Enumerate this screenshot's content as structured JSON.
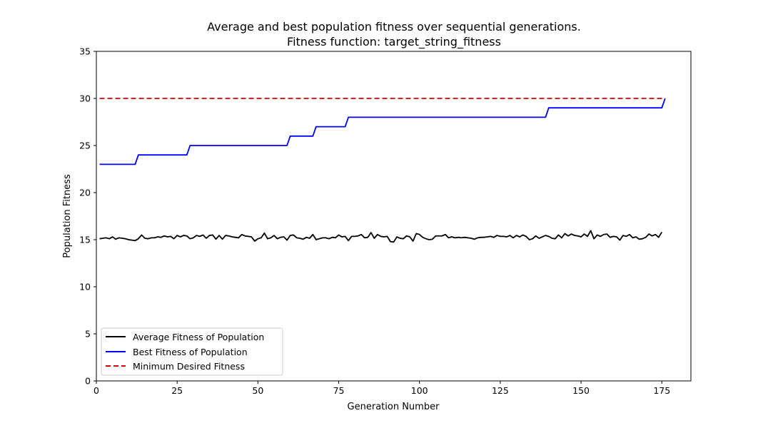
{
  "chart_data": {
    "type": "line",
    "title_line1": "Average and best population fitness over sequential generations.",
    "title_line2": "Fitness function: target_string_fitness",
    "xlabel": "Generation Number",
    "ylabel": "Population Fitness",
    "xlim": [
      0,
      184
    ],
    "ylim": [
      0,
      35
    ],
    "xticks": [
      0,
      25,
      50,
      75,
      100,
      125,
      150,
      175
    ],
    "yticks": [
      0,
      5,
      10,
      15,
      20,
      25,
      30,
      35
    ],
    "legend_position": "lower-left",
    "series": [
      {
        "name": "Average Fitness of Population",
        "color": "#000000",
        "style": "solid",
        "x_start": 1,
        "values": [
          15.1,
          15.15,
          15.2,
          15.1,
          15.3,
          15.05,
          15.2,
          15.15,
          15.1,
          15.0,
          14.95,
          14.9,
          15.1,
          15.5,
          15.15,
          15.1,
          15.2,
          15.2,
          15.3,
          15.25,
          15.4,
          15.3,
          15.35,
          15.1,
          15.45,
          15.3,
          15.45,
          15.4,
          15.1,
          15.2,
          15.45,
          15.35,
          15.5,
          15.15,
          15.45,
          15.5,
          15.05,
          15.45,
          15.05,
          15.45,
          15.4,
          15.3,
          15.25,
          15.2,
          15.55,
          15.4,
          15.35,
          15.3,
          14.85,
          15.1,
          15.2,
          15.7,
          15.1,
          15.2,
          15.45,
          15.1,
          15.25,
          15.3,
          14.95,
          15.45,
          15.5,
          15.2,
          15.15,
          15.05,
          15.25,
          15.15,
          15.55,
          15.0,
          15.1,
          15.2,
          15.2,
          15.1,
          15.25,
          15.2,
          15.5,
          15.3,
          15.35,
          14.9,
          15.35,
          15.35,
          15.4,
          15.55,
          15.2,
          15.25,
          15.75,
          15.15,
          15.55,
          15.35,
          15.3,
          15.35,
          14.8,
          14.75,
          15.3,
          15.15,
          15.1,
          15.4,
          15.3,
          14.85,
          15.65,
          15.55,
          15.25,
          15.1,
          15.0,
          15.05,
          15.4,
          15.4,
          15.4,
          15.55,
          15.2,
          15.3,
          15.2,
          15.25,
          15.2,
          15.25,
          15.2,
          15.15,
          15.05,
          15.2,
          15.25,
          15.25,
          15.3,
          15.35,
          15.25,
          15.45,
          15.35,
          15.35,
          15.3,
          15.45,
          15.2,
          15.45,
          15.3,
          15.5,
          15.35,
          15.0,
          15.1,
          15.4,
          15.15,
          15.3,
          15.45,
          15.35,
          15.15,
          15.1,
          15.5,
          15.2,
          15.65,
          15.4,
          15.6,
          15.45,
          15.4,
          15.3,
          15.6,
          15.35,
          15.95,
          15.1,
          15.5,
          15.35,
          15.55,
          15.6,
          15.25,
          15.35,
          15.3,
          14.95,
          15.45,
          15.35,
          15.55,
          15.2,
          15.3,
          15.05,
          15.1,
          15.25,
          15.6,
          15.4,
          15.55,
          15.25,
          15.8
        ]
      },
      {
        "name": "Best Fitness of Population",
        "color": "#0000ff",
        "style": "solid",
        "x": [
          1,
          12,
          13,
          28,
          29,
          59,
          60,
          67,
          68,
          77,
          78,
          139,
          140,
          175,
          176
        ],
        "y": [
          23,
          23,
          24,
          24,
          25,
          25,
          26,
          26,
          27,
          27,
          28,
          28,
          29,
          29,
          30
        ]
      },
      {
        "name": "Minimum Desired Fitness",
        "color": "#dd0000",
        "style": "dashed",
        "x": [
          1,
          176
        ],
        "y": [
          30,
          30
        ]
      }
    ]
  }
}
